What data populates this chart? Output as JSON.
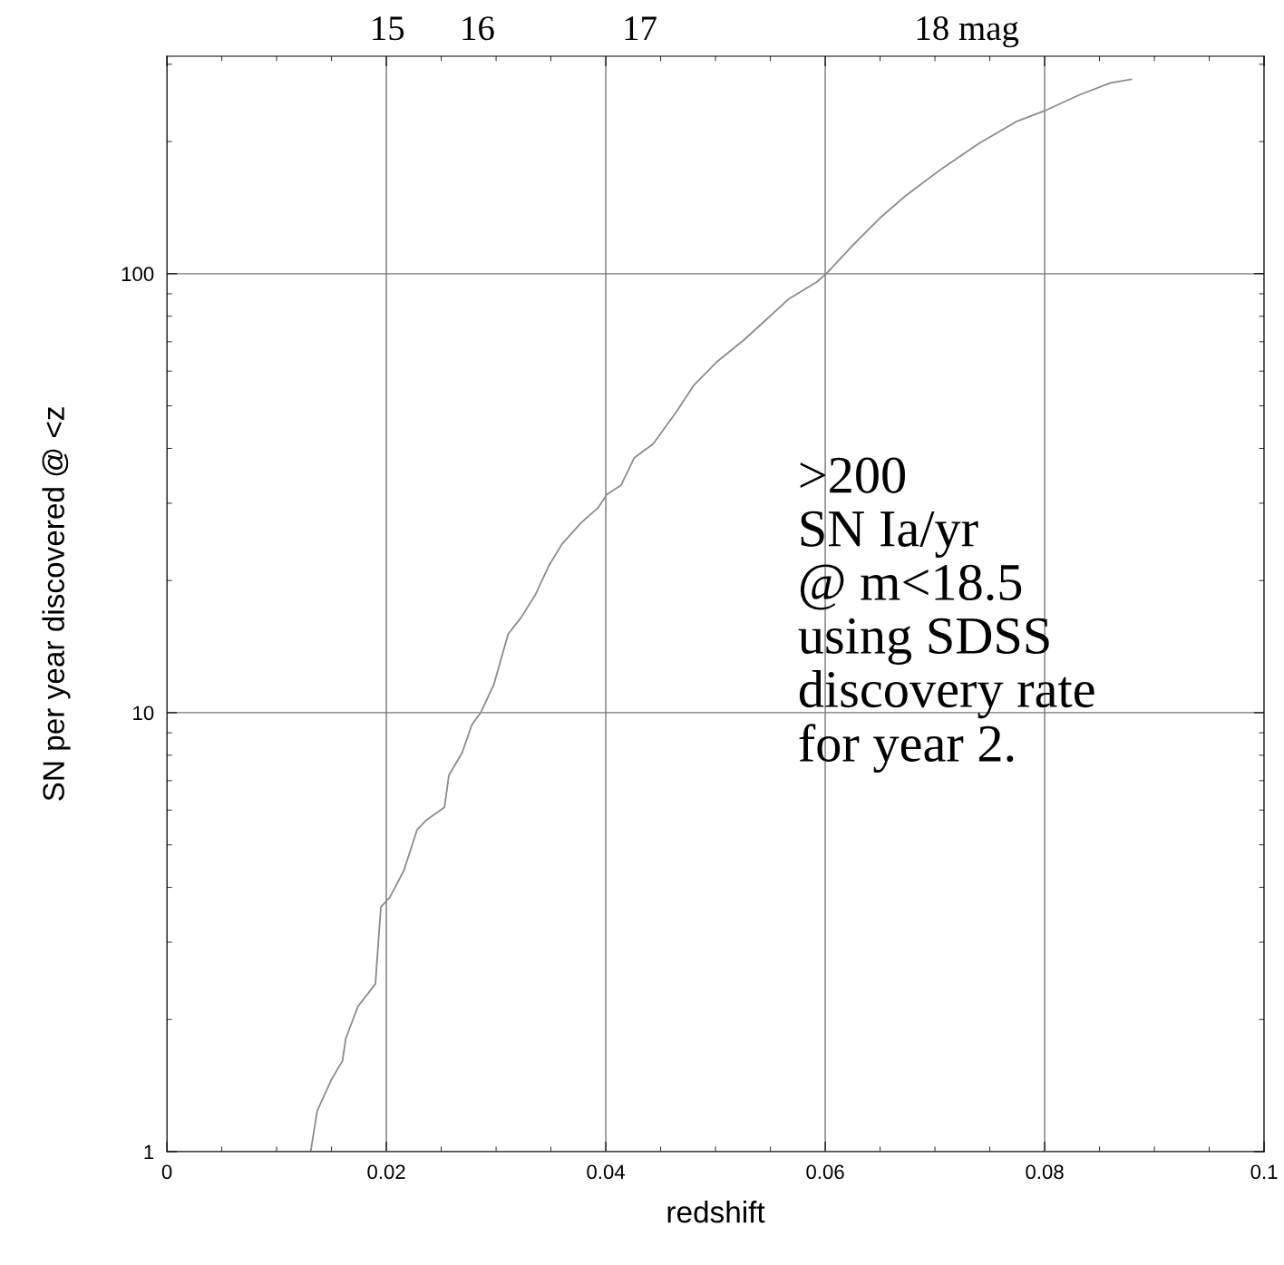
{
  "chart_data": {
    "type": "line",
    "xlabel": "redshift",
    "ylabel": "SN per year discovered @ <z",
    "x": [
      0.0131,
      0.0137,
      0.015,
      0.016,
      0.0163,
      0.0174,
      0.019,
      0.0195,
      0.0203,
      0.0216,
      0.0228,
      0.0236,
      0.0253,
      0.0257,
      0.0269,
      0.0278,
      0.0286,
      0.0298,
      0.0311,
      0.0323,
      0.0336,
      0.0348,
      0.036,
      0.0377,
      0.0393,
      0.0401,
      0.0414,
      0.0426,
      0.0443,
      0.0464,
      0.048,
      0.0501,
      0.0526,
      0.0546,
      0.0567,
      0.0592,
      0.0601,
      0.0625,
      0.065,
      0.0674,
      0.0707,
      0.074,
      0.0774,
      0.08,
      0.0831,
      0.086,
      0.0879
    ],
    "series": [
      {
        "color": "#8c8c8c",
        "values": [
          1,
          1.24,
          1.46,
          1.61,
          1.81,
          2.14,
          2.41,
          3.61,
          3.79,
          4.37,
          5.41,
          5.68,
          6.09,
          7.2,
          8.1,
          9.4,
          10,
          11.6,
          15.1,
          16.5,
          18.6,
          21.6,
          24.2,
          27.0,
          29.3,
          31.4,
          33.0,
          38.1,
          40.9,
          48.3,
          55.6,
          62.9,
          70.7,
          78.5,
          87.7,
          95.6,
          100,
          116,
          134,
          151,
          174,
          198,
          222,
          235,
          255,
          272,
          277
        ]
      }
    ],
    "xlim": [
      0,
      0.1
    ],
    "xticks": [
      0,
      0.02,
      0.04,
      0.06,
      0.08,
      0.1
    ],
    "ylim": [
      1,
      313
    ],
    "yticks": [
      1,
      10,
      100
    ],
    "log": "y",
    "grid": true,
    "marker": "none",
    "line_style": "solid",
    "legend": false,
    "annotations": [
      "15",
      "16",
      "17",
      "18 mag",
      ">200\nSN Ia/yr\n@ m<18.5\nusing SDSS\ndiscovery rate\nfor year 2."
    ]
  }
}
